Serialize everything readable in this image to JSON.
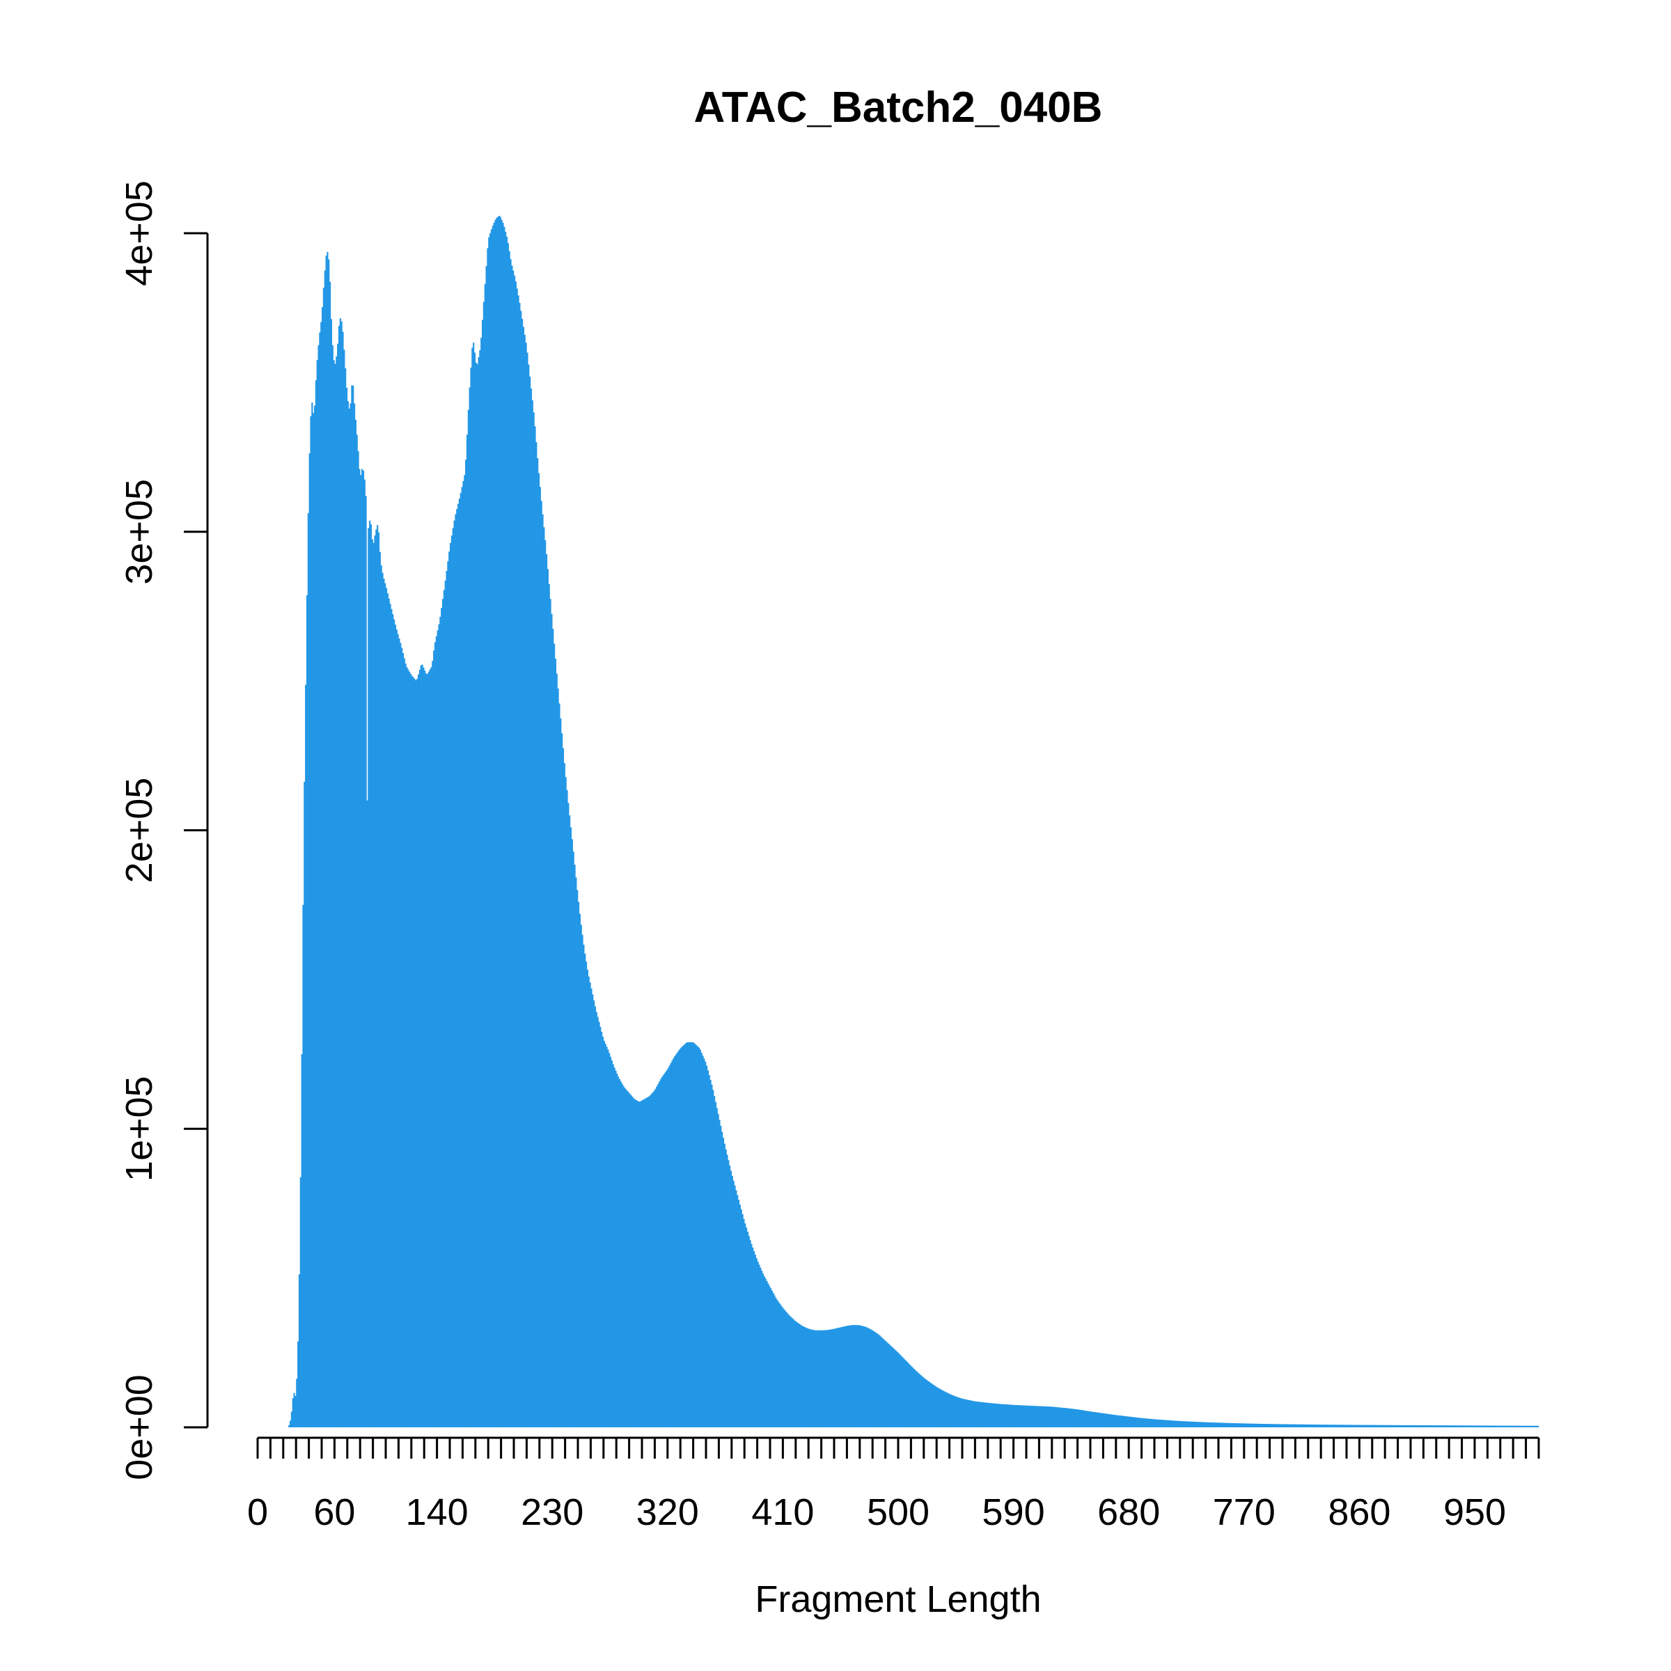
{
  "chart_data": {
    "type": "bar",
    "title": "ATAC_Batch2_040B",
    "xlabel": "Fragment Length",
    "ylabel": "",
    "xlim": [
      0,
      1000
    ],
    "ylim": [
      0,
      400000
    ],
    "bar_color": "#2297E6",
    "background": "#FFFFFF",
    "grid": false,
    "legend": "none",
    "x_ticks": [
      0,
      60,
      140,
      230,
      320,
      410,
      500,
      590,
      680,
      770,
      860,
      950
    ],
    "x_minor_tick_step": 10,
    "y_ticks": [
      0,
      100000,
      200000,
      300000,
      400000
    ],
    "y_tick_labels": [
      "0e+00",
      "1e+05",
      "2e+05",
      "3e+05",
      "4e+05"
    ],
    "curve_points": [
      [
        24,
        0
      ],
      [
        26,
        3000
      ],
      [
        28,
        12000
      ],
      [
        30,
        10000
      ],
      [
        32,
        35000
      ],
      [
        34,
        100000
      ],
      [
        36,
        200000
      ],
      [
        38,
        265000
      ],
      [
        40,
        320000
      ],
      [
        42,
        345000
      ],
      [
        44,
        338000
      ],
      [
        46,
        355000
      ],
      [
        48,
        365000
      ],
      [
        50,
        372000
      ],
      [
        52,
        385000
      ],
      [
        54,
        395000
      ],
      [
        56,
        390000
      ],
      [
        58,
        365000
      ],
      [
        60,
        355000
      ],
      [
        62,
        360000
      ],
      [
        64,
        372000
      ],
      [
        66,
        370000
      ],
      [
        68,
        358000
      ],
      [
        70,
        345000
      ],
      [
        72,
        340000
      ],
      [
        74,
        352000
      ],
      [
        76,
        340000
      ],
      [
        78,
        330000
      ],
      [
        80,
        318000
      ],
      [
        82,
        322000
      ],
      [
        84,
        316000
      ],
      [
        86,
        300000
      ],
      [
        88,
        305000
      ],
      [
        90,
        295000
      ],
      [
        92,
        300000
      ],
      [
        94,
        303000
      ],
      [
        96,
        290000
      ],
      [
        98,
        285000
      ],
      [
        100,
        282000
      ],
      [
        104,
        275000
      ],
      [
        108,
        268000
      ],
      [
        112,
        262000
      ],
      [
        116,
        255000
      ],
      [
        120,
        252000
      ],
      [
        124,
        250000
      ],
      [
        128,
        256000
      ],
      [
        132,
        252000
      ],
      [
        136,
        255000
      ],
      [
        138,
        262000
      ],
      [
        142,
        270000
      ],
      [
        146,
        282000
      ],
      [
        150,
        295000
      ],
      [
        154,
        305000
      ],
      [
        158,
        312000
      ],
      [
        162,
        320000
      ],
      [
        165,
        345000
      ],
      [
        168,
        365000
      ],
      [
        171,
        355000
      ],
      [
        174,
        362000
      ],
      [
        177,
        380000
      ],
      [
        180,
        398000
      ],
      [
        183,
        402000
      ],
      [
        186,
        405000
      ],
      [
        189,
        406000
      ],
      [
        192,
        403000
      ],
      [
        195,
        398000
      ],
      [
        198,
        390000
      ],
      [
        201,
        385000
      ],
      [
        204,
        378000
      ],
      [
        207,
        370000
      ],
      [
        210,
        362000
      ],
      [
        213,
        350000
      ],
      [
        216,
        338000
      ],
      [
        219,
        322000
      ],
      [
        222,
        308000
      ],
      [
        225,
        295000
      ],
      [
        228,
        280000
      ],
      [
        231,
        265000
      ],
      [
        234,
        250000
      ],
      [
        237,
        235000
      ],
      [
        240,
        220000
      ],
      [
        243,
        207000
      ],
      [
        246,
        195000
      ],
      [
        249,
        182000
      ],
      [
        252,
        170000
      ],
      [
        255,
        160000
      ],
      [
        258,
        152000
      ],
      [
        261,
        146000
      ],
      [
        264,
        140000
      ],
      [
        267,
        135000
      ],
      [
        270,
        130000
      ],
      [
        274,
        126000
      ],
      [
        278,
        121000
      ],
      [
        282,
        117000
      ],
      [
        286,
        114000
      ],
      [
        290,
        112000
      ],
      [
        294,
        110000
      ],
      [
        298,
        109000
      ],
      [
        302,
        110000
      ],
      [
        306,
        111000
      ],
      [
        310,
        113000
      ],
      [
        315,
        117000
      ],
      [
        320,
        120000
      ],
      [
        325,
        124000
      ],
      [
        330,
        127000
      ],
      [
        335,
        129000
      ],
      [
        340,
        129000
      ],
      [
        345,
        127000
      ],
      [
        350,
        122000
      ],
      [
        355,
        114000
      ],
      [
        360,
        104000
      ],
      [
        365,
        94000
      ],
      [
        370,
        85000
      ],
      [
        375,
        77000
      ],
      [
        380,
        69000
      ],
      [
        385,
        62000
      ],
      [
        390,
        56000
      ],
      [
        395,
        51000
      ],
      [
        400,
        47000
      ],
      [
        405,
        43000
      ],
      [
        410,
        40000
      ],
      [
        415,
        37500
      ],
      [
        420,
        35500
      ],
      [
        425,
        34000
      ],
      [
        430,
        33000
      ],
      [
        435,
        32500
      ],
      [
        440,
        32500
      ],
      [
        445,
        32600
      ],
      [
        450,
        33000
      ],
      [
        455,
        33500
      ],
      [
        460,
        34000
      ],
      [
        465,
        34300
      ],
      [
        470,
        34200
      ],
      [
        475,
        33600
      ],
      [
        480,
        32500
      ],
      [
        485,
        31000
      ],
      [
        490,
        29000
      ],
      [
        495,
        27000
      ],
      [
        500,
        25000
      ],
      [
        505,
        22800
      ],
      [
        510,
        20600
      ],
      [
        515,
        18500
      ],
      [
        520,
        16600
      ],
      [
        525,
        15000
      ],
      [
        530,
        13500
      ],
      [
        535,
        12300
      ],
      [
        540,
        11200
      ],
      [
        545,
        10300
      ],
      [
        550,
        9600
      ],
      [
        560,
        8700
      ],
      [
        570,
        8200
      ],
      [
        580,
        7800
      ],
      [
        590,
        7500
      ],
      [
        600,
        7300
      ],
      [
        610,
        7100
      ],
      [
        620,
        6900
      ],
      [
        630,
        6500
      ],
      [
        640,
        6000
      ],
      [
        650,
        5300
      ],
      [
        660,
        4700
      ],
      [
        670,
        4100
      ],
      [
        680,
        3600
      ],
      [
        690,
        3100
      ],
      [
        700,
        2700
      ],
      [
        720,
        2100
      ],
      [
        740,
        1700
      ],
      [
        760,
        1400
      ],
      [
        780,
        1200
      ],
      [
        800,
        1050
      ],
      [
        830,
        900
      ],
      [
        860,
        800
      ],
      [
        900,
        700
      ],
      [
        950,
        600
      ],
      [
        1000,
        500
      ]
    ],
    "dip_bins": [
      [
        85,
        210000
      ]
    ]
  }
}
